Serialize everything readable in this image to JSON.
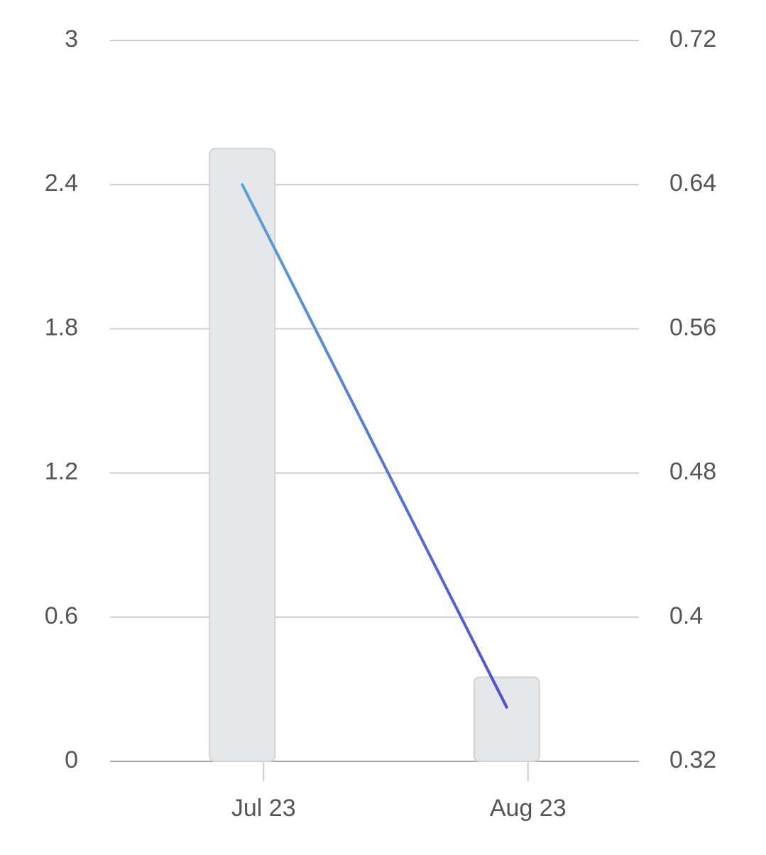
{
  "chart_data": {
    "type": "bar-line",
    "categories": [
      "Jul 23",
      "Aug 23"
    ],
    "series": [
      {
        "type": "bar",
        "color": "#e6e7eb",
        "values": [
          2.55,
          0.35
        ]
      },
      {
        "type": "line",
        "axis": "y2",
        "color": "#4b55d8",
        "values": [
          0.64,
          0.35
        ]
      }
    ],
    "ylim": [
      0,
      3
    ],
    "yticks": [
      0,
      0.6,
      1.2,
      1.8,
      2.4,
      3
    ],
    "y2lim": [
      0.32,
      0.72
    ],
    "y2ticks": [
      0.32,
      0.4,
      0.48,
      0.56,
      0.64,
      0.72
    ],
    "grid": true
  }
}
